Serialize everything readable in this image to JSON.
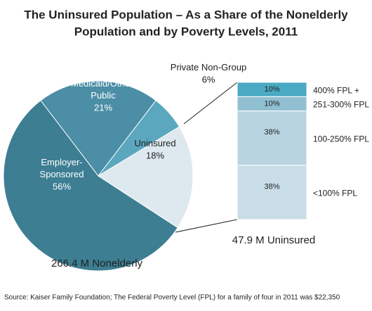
{
  "title": [
    "The Uninsured Population – As a Share of the Nonelderly",
    "Population and by Poverty Levels, 2011"
  ],
  "source": "Source: Kaiser Family Foundation; The Federal Poverty Level (FPL) for a family of four in 2011 was $22,350",
  "chart_data": [
    {
      "type": "pie",
      "categories": [
        "Employer-Sponsored",
        "Medicaid/Other Public",
        "Private Non-Group",
        "Uninsured"
      ],
      "values": [
        56,
        21,
        6,
        18
      ],
      "value_labels": [
        "56%",
        "21%",
        "6%",
        "18%"
      ],
      "colors": [
        "#3d7e92",
        "#4b8ea5",
        "#5ba7be",
        "#dde9ef"
      ],
      "caption": "266.4 M Nonelderly"
    },
    {
      "type": "bar",
      "categories": [
        "<100% FPL",
        "100-250% FPL",
        "251-300% FPL",
        "400% FPL +"
      ],
      "values": [
        38,
        38,
        10,
        10
      ],
      "value_labels": [
        "38%",
        "38%",
        "10%",
        "10%"
      ],
      "colors": [
        "#c8dde8",
        "#b9d4e1",
        "#90bfd1",
        "#4aaac4"
      ],
      "caption": "47.9 M Uninsured"
    }
  ]
}
